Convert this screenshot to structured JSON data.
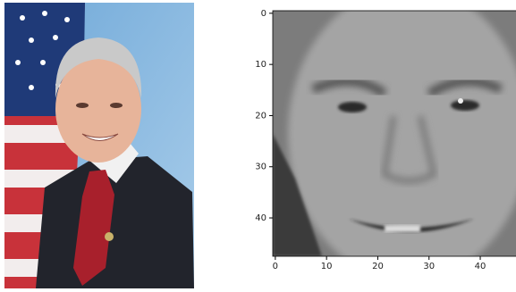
{
  "chart_data": {
    "type": "image",
    "xlim": [
      -0.5,
      47.5
    ],
    "ylim": [
      47.5,
      -0.5
    ],
    "xticks": [
      0,
      10,
      20,
      30,
      40
    ],
    "yticks": [
      0,
      10,
      20,
      30,
      40
    ]
  }
}
